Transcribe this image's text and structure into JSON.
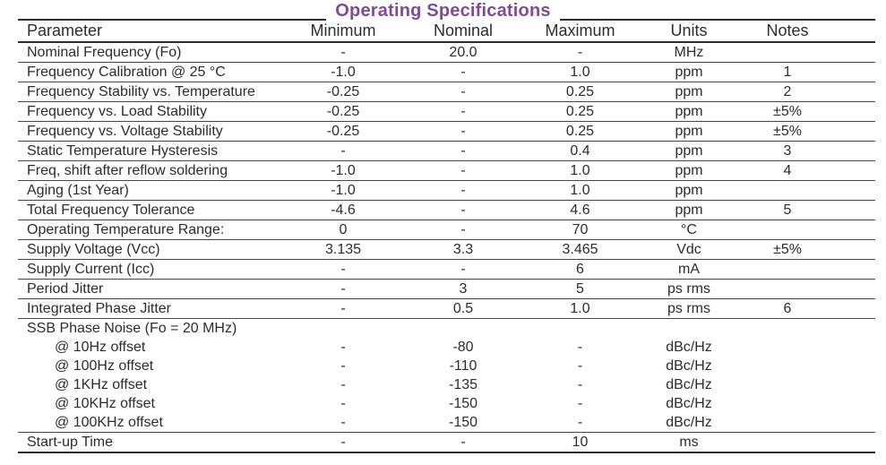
{
  "title": {
    "text": "Operating Specifications",
    "color": "#84489b"
  },
  "table": {
    "columns": [
      {
        "key": "parameter",
        "label": "Parameter"
      },
      {
        "key": "minimum",
        "label": "Minimum"
      },
      {
        "key": "nominal",
        "label": "Nominal"
      },
      {
        "key": "maximum",
        "label": "Maximum"
      },
      {
        "key": "units",
        "label": "Units"
      },
      {
        "key": "notes",
        "label": "Notes"
      }
    ],
    "rows": [
      {
        "parameter": "Nominal Frequency (Fo)",
        "minimum": "-",
        "nominal": "20.0",
        "maximum": "-",
        "units": "MHz",
        "notes": "",
        "style": "normal"
      },
      {
        "parameter": "Frequency Calibration @ 25 °C",
        "minimum": "-1.0",
        "nominal": "-",
        "maximum": "1.0",
        "units": "ppm",
        "notes": "1",
        "style": "normal"
      },
      {
        "parameter": "Frequency Stability vs. Temperature",
        "minimum": "-0.25",
        "nominal": "-",
        "maximum": "0.25",
        "units": "ppm",
        "notes": "2",
        "style": "normal"
      },
      {
        "parameter": "Frequency vs. Load Stability",
        "minimum": "-0.25",
        "nominal": "-",
        "maximum": "0.25",
        "units": "ppm",
        "notes": "±5%",
        "style": "normal"
      },
      {
        "parameter": "Frequency vs. Voltage Stability",
        "minimum": "-0.25",
        "nominal": "-",
        "maximum": "0.25",
        "units": "ppm",
        "notes": "±5%",
        "style": "normal"
      },
      {
        "parameter": "Static Temperature Hysteresis",
        "minimum": "-",
        "nominal": "-",
        "maximum": "0.4",
        "units": "ppm",
        "notes": "3",
        "style": "normal"
      },
      {
        "parameter": "Freq, shift after reflow soldering",
        "minimum": "-1.0",
        "nominal": "-",
        "maximum": "1.0",
        "units": "ppm",
        "notes": "4",
        "style": "normal"
      },
      {
        "parameter": "Aging (1st Year)",
        "minimum": "-1.0",
        "nominal": "-",
        "maximum": "1.0",
        "units": "ppm",
        "notes": "",
        "style": "normal"
      },
      {
        "parameter": "Total Frequency Tolerance",
        "minimum": "-4.6",
        "nominal": "-",
        "maximum": "4.6",
        "units": "ppm",
        "notes": "5",
        "style": "normal"
      },
      {
        "parameter": "Operating Temperature Range:",
        "minimum": "0",
        "nominal": "-",
        "maximum": "70",
        "units": "°C",
        "notes": "",
        "style": "normal"
      },
      {
        "parameter": "Supply Voltage (Vcc)",
        "minimum": "3.135",
        "nominal": "3.3",
        "maximum": "3.465",
        "units": "Vdc",
        "notes": "±5%",
        "style": "normal"
      },
      {
        "parameter": "Supply Current (Icc)",
        "minimum": "-",
        "nominal": "-",
        "maximum": "6",
        "units": "mA",
        "notes": "",
        "style": "normal"
      },
      {
        "parameter": "Period Jitter",
        "minimum": "-",
        "nominal": "3",
        "maximum": "5",
        "units": "ps rms",
        "notes": "",
        "style": "normal"
      },
      {
        "parameter": "Integrated Phase Jitter",
        "minimum": "-",
        "nominal": "0.5",
        "maximum": "1.0",
        "units": "ps rms",
        "notes": "6",
        "style": "normal"
      },
      {
        "parameter": "SSB Phase Noise (Fo = 20 MHz)",
        "minimum": "",
        "nominal": "",
        "maximum": "",
        "units": "",
        "notes": "",
        "style": "section"
      },
      {
        "parameter": "@ 10Hz offset",
        "minimum": "-",
        "nominal": "-80",
        "maximum": "-",
        "units": "dBc/Hz",
        "notes": "",
        "style": "sub"
      },
      {
        "parameter": "@ 100Hz offset",
        "minimum": "-",
        "nominal": "-110",
        "maximum": "-",
        "units": "dBc/Hz",
        "notes": "",
        "style": "sub"
      },
      {
        "parameter": "@ 1KHz offset",
        "minimum": "-",
        "nominal": "-135",
        "maximum": "-",
        "units": "dBc/Hz",
        "notes": "",
        "style": "sub"
      },
      {
        "parameter": "@ 10KHz offset",
        "minimum": "-",
        "nominal": "-150",
        "maximum": "-",
        "units": "dBc/Hz",
        "notes": "",
        "style": "sub"
      },
      {
        "parameter": "@ 100KHz offset",
        "minimum": "-",
        "nominal": "-150",
        "maximum": "-",
        "units": "dBc/Hz",
        "notes": "",
        "style": "sub"
      },
      {
        "parameter": "Start-up Time",
        "minimum": "-",
        "nominal": "-",
        "maximum": "10",
        "units": "ms",
        "notes": "",
        "style": "normal"
      }
    ]
  }
}
